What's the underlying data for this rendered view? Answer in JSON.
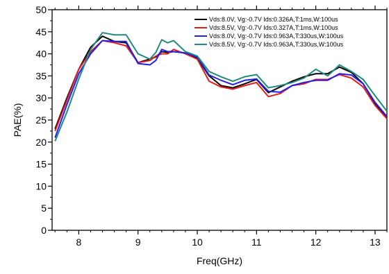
{
  "chart_data": {
    "type": "line",
    "xlabel": "Freq(GHz)",
    "ylabel": "PAE(%)",
    "xlim": [
      7.55,
      13.2
    ],
    "ylim": [
      0,
      50
    ],
    "xticks": [
      8,
      9,
      10,
      11,
      12,
      13
    ],
    "yticks": [
      0,
      5,
      10,
      15,
      20,
      25,
      30,
      35,
      40,
      45,
      50
    ],
    "grid": false,
    "legend_position": "top-right",
    "x": [
      7.6,
      7.8,
      8.0,
      8.2,
      8.4,
      8.6,
      8.8,
      9.0,
      9.2,
      9.3,
      9.4,
      9.5,
      9.6,
      9.8,
      10.0,
      10.2,
      10.4,
      10.6,
      10.8,
      11.0,
      11.2,
      11.4,
      11.6,
      11.8,
      12.0,
      12.2,
      12.4,
      12.6,
      12.8,
      13.0,
      13.2
    ],
    "series": [
      {
        "name": "Vds:8.0V, Vg:-0.7V Ids:0.326A,T:1ms,W:100us",
        "color": "#000000",
        "values": [
          23,
          30,
          36.5,
          41.5,
          44,
          42.8,
          42.5,
          38,
          38.8,
          39.3,
          40.5,
          40.3,
          40.5,
          40.2,
          39,
          35,
          32.8,
          32.3,
          33.2,
          34.2,
          31.2,
          32.5,
          33.8,
          34.8,
          35.5,
          35.5,
          37,
          35.8,
          33.2,
          28.8,
          25.5
        ]
      },
      {
        "name": "Vds:8.5V, Vg:-0.7V Ids:0.327A,T:1ms,W:100us",
        "color": "#e8191a",
        "values": [
          22.5,
          29.5,
          36.5,
          40.5,
          43,
          42.5,
          41.8,
          38,
          38.5,
          39.5,
          40,
          40,
          41,
          40,
          38.8,
          33.8,
          32.5,
          32,
          32.8,
          33.5,
          30.3,
          31,
          32.8,
          33.2,
          34.2,
          34.2,
          35.3,
          34.5,
          32.5,
          28.3,
          25.3
        ]
      },
      {
        "name": "Vds:8.0V, Vg:-0.7V Ids:0.963A,T:330us,W:100us",
        "color": "#1f1ff0",
        "values": [
          21,
          28.5,
          35.5,
          40,
          43,
          42.8,
          42.8,
          37.8,
          37.5,
          38.5,
          41,
          40.5,
          40.5,
          40.2,
          39.3,
          35.2,
          34,
          33,
          34,
          34.3,
          31.5,
          31.3,
          32.8,
          33.5,
          34,
          34,
          35.5,
          35.2,
          33.2,
          29,
          25.8
        ]
      },
      {
        "name": "Vds:8.5V, Vg:-0.7V Ids:0.963A,T:330us,W:100us",
        "color": "#1f8a80",
        "values": [
          20.2,
          26.8,
          34.3,
          41,
          44.8,
          44.3,
          44.3,
          40,
          38.8,
          40.3,
          43.2,
          42.5,
          43,
          40.5,
          39.5,
          36,
          34.8,
          33.8,
          34.8,
          35.3,
          32.3,
          32.8,
          33.5,
          34.5,
          36.5,
          35,
          37.5,
          36,
          34.2,
          30.5,
          27
        ]
      }
    ]
  }
}
